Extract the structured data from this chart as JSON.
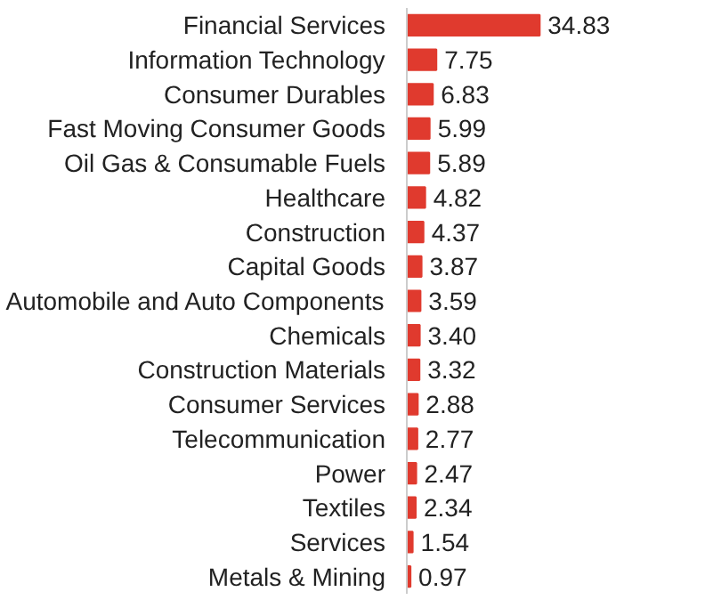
{
  "chart_data": {
    "type": "bar",
    "orientation": "horizontal",
    "categories": [
      "Financial Services",
      "Information Technology",
      "Consumer Durables",
      "Fast Moving Consumer Goods",
      "Oil Gas & Consumable Fuels",
      "Healthcare",
      "Construction",
      "Capital Goods",
      "Automobile and Auto Components",
      "Chemicals",
      "Construction Materials",
      "Consumer Services",
      "Telecommunication",
      "Power",
      "Textiles",
      "Services",
      "Metals & Mining"
    ],
    "values": [
      34.83,
      7.75,
      6.83,
      5.99,
      5.89,
      4.82,
      4.37,
      3.87,
      3.59,
      3.4,
      3.32,
      2.88,
      2.77,
      2.47,
      2.34,
      1.54,
      0.97
    ],
    "value_labels": [
      "34.83",
      "7.75",
      "6.83",
      "5.99",
      "5.89",
      "4.82",
      "4.37",
      "3.87",
      "3.59",
      "3.40",
      "3.32",
      "2.88",
      "2.77",
      "2.47",
      "2.34",
      "1.54",
      "0.97"
    ],
    "color": "#e03a2e"
  }
}
